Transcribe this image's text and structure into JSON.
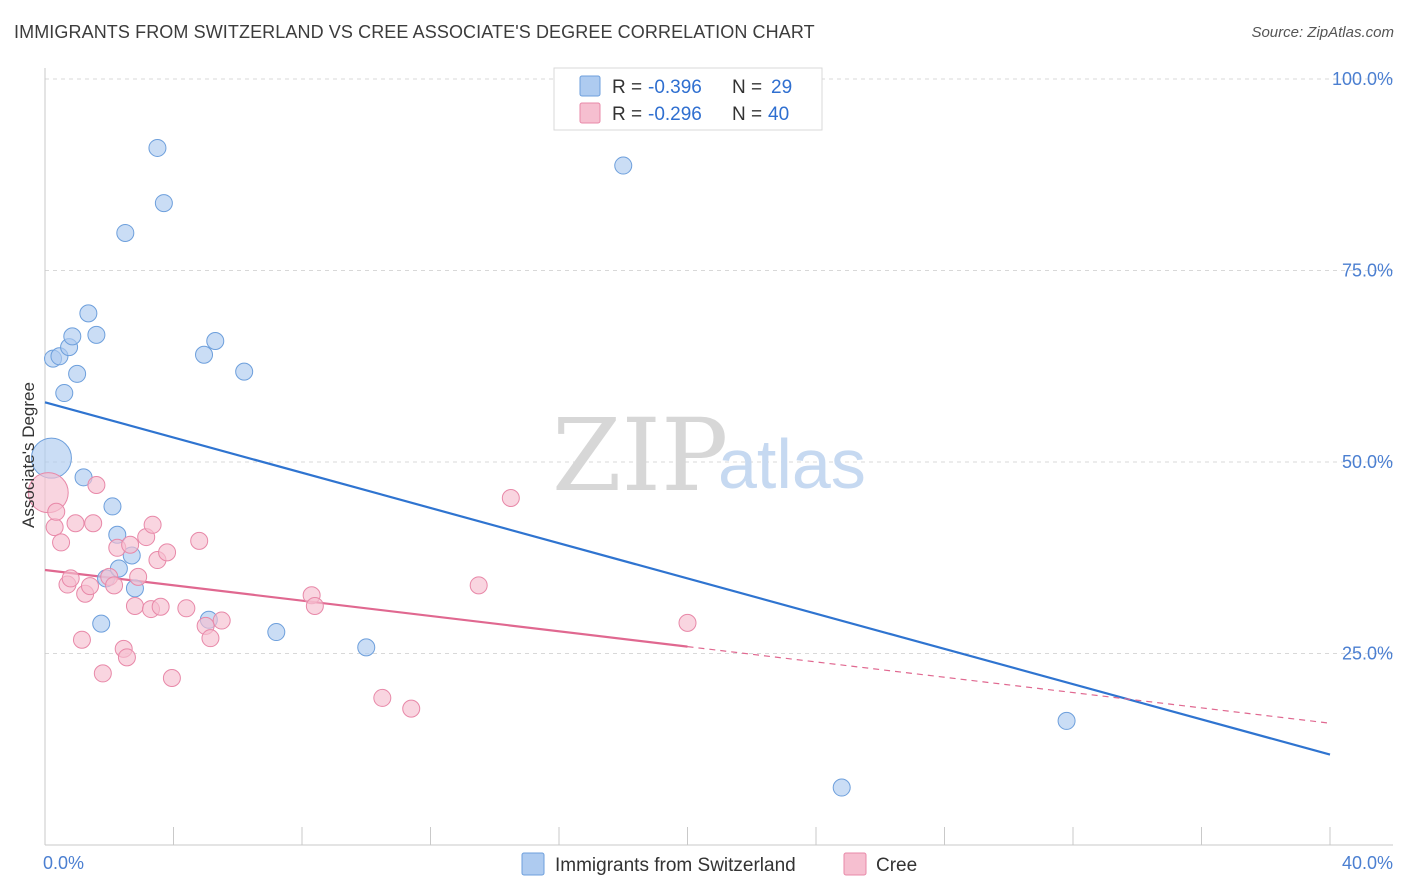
{
  "title": "IMMIGRANTS FROM SWITZERLAND VS CREE ASSOCIATE'S DEGREE CORRELATION CHART",
  "source": "Source: ZipAtlas.com",
  "watermark": {
    "part1": "ZIP",
    "part2": "atlas"
  },
  "colors": {
    "blue_fill": "#aecbf0",
    "blue_stroke": "#6d9fdc",
    "blue_line": "#2f74d0",
    "pink_fill": "#f6bfd0",
    "pink_stroke": "#e888a8",
    "pink_line": "#e06890",
    "grid": "#d8d8d8",
    "tick_label": "#4b7fd1"
  },
  "legend": {
    "rows": [
      {
        "r_label": "R = ",
        "r_value": "-0.396",
        "n_label": "N = ",
        "n_value": "29"
      },
      {
        "r_label": "R = ",
        "r_value": "-0.296",
        "n_label": "N = ",
        "n_value": "40"
      }
    ]
  },
  "bottom_legend": [
    "Immigrants from Switzerland",
    "Cree"
  ],
  "chart_data": {
    "type": "scatter",
    "title": "IMMIGRANTS FROM SWITZERLAND VS CREE ASSOCIATE'S DEGREE CORRELATION CHART",
    "xlabel": "",
    "ylabel": "Associate's Degree",
    "xlim": [
      0,
      40
    ],
    "ylim": [
      0,
      100
    ],
    "x_tick_labels": [
      {
        "value": 0,
        "label": "0.0%"
      },
      {
        "value": 40,
        "label": "40.0%"
      }
    ],
    "y_tick_labels": [
      {
        "value": 25,
        "label": "25.0%"
      },
      {
        "value": 50,
        "label": "50.0%"
      },
      {
        "value": 75,
        "label": "75.0%"
      },
      {
        "value": 100,
        "label": "100.0%"
      }
    ],
    "grid": true,
    "legend_position": "top-center",
    "series": [
      {
        "name": "Immigrants from Switzerland",
        "color": "#aecbf0",
        "points": [
          {
            "x": 0.2,
            "y": 50.5,
            "big": true
          },
          {
            "x": 0.25,
            "y": 63.5
          },
          {
            "x": 0.45,
            "y": 63.8
          },
          {
            "x": 0.6,
            "y": 59.0
          },
          {
            "x": 0.75,
            "y": 65.0
          },
          {
            "x": 0.85,
            "y": 66.4
          },
          {
            "x": 1.0,
            "y": 61.5
          },
          {
            "x": 1.2,
            "y": 48.0
          },
          {
            "x": 1.35,
            "y": 69.4
          },
          {
            "x": 1.6,
            "y": 66.6
          },
          {
            "x": 1.75,
            "y": 28.9
          },
          {
            "x": 1.9,
            "y": 34.8
          },
          {
            "x": 2.1,
            "y": 44.2
          },
          {
            "x": 2.25,
            "y": 40.5
          },
          {
            "x": 2.3,
            "y": 36.1
          },
          {
            "x": 2.5,
            "y": 79.9
          },
          {
            "x": 2.7,
            "y": 37.8
          },
          {
            "x": 2.8,
            "y": 33.5
          },
          {
            "x": 3.5,
            "y": 91.0
          },
          {
            "x": 3.7,
            "y": 83.8
          },
          {
            "x": 4.95,
            "y": 64.0
          },
          {
            "x": 5.1,
            "y": 29.4
          },
          {
            "x": 5.3,
            "y": 65.8
          },
          {
            "x": 6.2,
            "y": 61.8
          },
          {
            "x": 7.2,
            "y": 27.8
          },
          {
            "x": 10.0,
            "y": 25.8
          },
          {
            "x": 18.0,
            "y": 88.7
          },
          {
            "x": 24.8,
            "y": 7.5
          },
          {
            "x": 31.8,
            "y": 16.2
          }
        ],
        "trend": {
          "x0": 0,
          "y0": 57.8,
          "x1": 40,
          "y1": 11.8,
          "dash_from": null
        }
      },
      {
        "name": "Cree",
        "color": "#f6bfd0",
        "points": [
          {
            "x": 0.1,
            "y": 46.0,
            "big": true
          },
          {
            "x": 0.3,
            "y": 41.5
          },
          {
            "x": 0.35,
            "y": 43.5
          },
          {
            "x": 0.5,
            "y": 39.5
          },
          {
            "x": 0.7,
            "y": 34.0
          },
          {
            "x": 0.8,
            "y": 34.8
          },
          {
            "x": 0.95,
            "y": 42.0
          },
          {
            "x": 1.15,
            "y": 26.8
          },
          {
            "x": 1.25,
            "y": 32.8
          },
          {
            "x": 1.4,
            "y": 33.8
          },
          {
            "x": 1.5,
            "y": 42.0
          },
          {
            "x": 1.6,
            "y": 47.0
          },
          {
            "x": 1.8,
            "y": 22.4
          },
          {
            "x": 2.0,
            "y": 35.0
          },
          {
            "x": 2.15,
            "y": 33.9
          },
          {
            "x": 2.25,
            "y": 38.8
          },
          {
            "x": 2.45,
            "y": 25.6
          },
          {
            "x": 2.55,
            "y": 24.5
          },
          {
            "x": 2.65,
            "y": 39.2
          },
          {
            "x": 2.8,
            "y": 31.2
          },
          {
            "x": 2.9,
            "y": 35.0
          },
          {
            "x": 3.15,
            "y": 40.2
          },
          {
            "x": 3.3,
            "y": 30.8
          },
          {
            "x": 3.35,
            "y": 41.8
          },
          {
            "x": 3.5,
            "y": 37.2
          },
          {
            "x": 3.6,
            "y": 31.1
          },
          {
            "x": 3.8,
            "y": 38.2
          },
          {
            "x": 3.95,
            "y": 21.8
          },
          {
            "x": 4.4,
            "y": 30.9
          },
          {
            "x": 4.8,
            "y": 39.7
          },
          {
            "x": 5.0,
            "y": 28.6
          },
          {
            "x": 5.15,
            "y": 27.0
          },
          {
            "x": 5.5,
            "y": 29.3
          },
          {
            "x": 8.3,
            "y": 32.6
          },
          {
            "x": 8.4,
            "y": 31.2
          },
          {
            "x": 10.5,
            "y": 19.2
          },
          {
            "x": 11.4,
            "y": 17.8
          },
          {
            "x": 13.5,
            "y": 33.9
          },
          {
            "x": 14.5,
            "y": 45.3
          },
          {
            "x": 20.0,
            "y": 29.0
          }
        ],
        "trend": {
          "x0": 0,
          "y0": 35.9,
          "x1": 40,
          "y1": 15.9,
          "dash_from": 20.0
        }
      }
    ]
  }
}
